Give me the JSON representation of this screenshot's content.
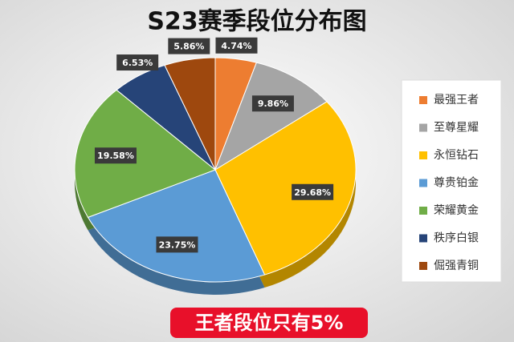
{
  "chart_data": {
    "type": "pie",
    "title": "S23赛季段位分布图",
    "categories": [
      "最强王者",
      "至尊星耀",
      "永恒钻石",
      "尊贵铂金",
      "荣耀黄金",
      "秩序白银",
      "倔强青铜"
    ],
    "values": [
      4.74,
      9.86,
      29.68,
      23.75,
      19.58,
      6.53,
      5.86
    ],
    "value_labels": [
      "4.74%",
      "9.86%",
      "29.68%",
      "23.75%",
      "19.58%",
      "6.53%",
      "5.86%"
    ],
    "colors": [
      "#ed7d31",
      "#a5a5a5",
      "#ffc000",
      "#5b9bd5",
      "#70ad47",
      "#264478",
      "#9e480e"
    ],
    "legend": "right",
    "annotation": "王者段位只有5%"
  }
}
